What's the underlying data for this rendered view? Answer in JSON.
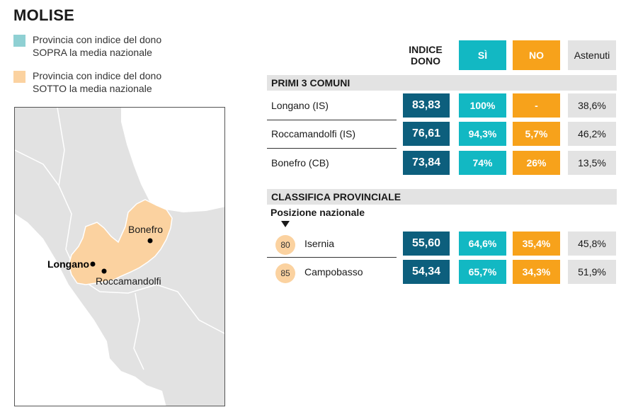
{
  "title": "MOLISE",
  "legend": [
    {
      "line1": "Provincia con indice del dono",
      "line2": "SOPRA la media nazionale",
      "color": "#8fd0d3"
    },
    {
      "line1": "Provincia con indice del dono",
      "line2": "SOTTO la media nazionale",
      "color": "#fbd2a0"
    }
  ],
  "map": {
    "labels": {
      "longano": "Longano",
      "roccamandolfi": "Roccamandolfi",
      "bonefro": "Bonefro"
    },
    "colors": {
      "land": "#e2e2e2",
      "region": "#fbd2a0",
      "sea": "#ffffff"
    }
  },
  "table": {
    "headers": {
      "indice_line1": "INDICE",
      "indice_line2": "DONO",
      "si": "SÌ",
      "no": "NO",
      "astenuti": "Astenuti"
    },
    "section1": "PRIMI 3 COMUNI",
    "section2": "CLASSIFICA PROVINCIALE",
    "posizione": "Posizione nazionale"
  },
  "chart_data": {
    "type": "table",
    "title": "MOLISE",
    "columns": [
      "INDICE DONO",
      "SÌ",
      "NO",
      "Astenuti"
    ],
    "comuni": [
      {
        "name": "Longano (IS)",
        "indice": "83,83",
        "si": "100%",
        "no": "-",
        "astenuti": "38,6%"
      },
      {
        "name": "Roccamandolfi (IS)",
        "indice": "76,61",
        "si": "94,3%",
        "no": "5,7%",
        "astenuti": "46,2%"
      },
      {
        "name": "Bonefro (CB)",
        "indice": "73,84",
        "si": "74%",
        "no": "26%",
        "astenuti": "13,5%"
      }
    ],
    "province": [
      {
        "rank": "80",
        "name": "Isernia",
        "indice": "55,60",
        "si": "64,6%",
        "no": "35,4%",
        "astenuti": "45,8%"
      },
      {
        "rank": "85",
        "name": "Campobasso",
        "indice": "54,34",
        "si": "65,7%",
        "no": "34,3%",
        "astenuti": "51,9%"
      }
    ]
  }
}
